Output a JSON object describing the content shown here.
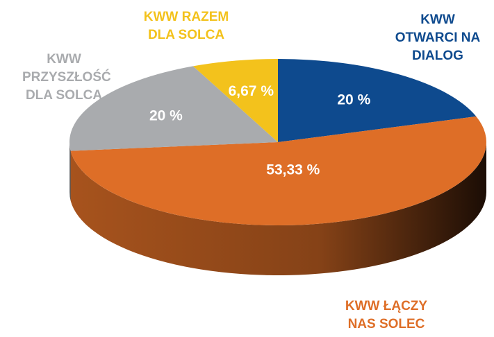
{
  "chart_data": {
    "type": "pie",
    "categories": [
      "KWW OTWARCI NA DIALOG",
      "KWW ŁĄCZY NAS SOLEC",
      "KWW PRZYSZŁOŚĆ DLA SOLCA",
      "KWW RAZEM DLA SOLCA"
    ],
    "values": [
      20,
      53.33,
      20,
      6.67
    ],
    "value_labels": [
      "20 %",
      "53,33 %",
      "20 %",
      "6,67 %"
    ],
    "colors": [
      "#0e4a8e",
      "#de6e27",
      "#a9abae",
      "#f3c21c"
    ]
  }
}
